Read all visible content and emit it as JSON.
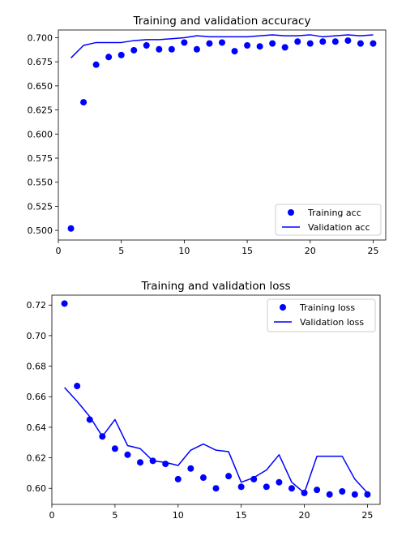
{
  "colors": {
    "marker": "#0000ff",
    "line": "#0000ff",
    "axes": "#000000",
    "legend_border": "#cccccc"
  },
  "chart_data": [
    {
      "type": "line",
      "title": "Training and validation accuracy",
      "xlabel": "",
      "ylabel": "",
      "xlim": [
        0,
        26
      ],
      "ylim": [
        0.49,
        0.708
      ],
      "xticks": [
        0,
        5,
        10,
        15,
        20,
        25
      ],
      "yticks": [
        0.5,
        0.525,
        0.55,
        0.575,
        0.6,
        0.625,
        0.65,
        0.675,
        0.7
      ],
      "ytick_labels": [
        "0.500",
        "0.525",
        "0.550",
        "0.575",
        "0.600",
        "0.625",
        "0.650",
        "0.675",
        "0.700"
      ],
      "grid": false,
      "legend_position": "lower-right",
      "x": [
        1,
        2,
        3,
        4,
        5,
        6,
        7,
        8,
        9,
        10,
        11,
        12,
        13,
        14,
        15,
        16,
        17,
        18,
        19,
        20,
        21,
        22,
        23,
        24,
        25
      ],
      "series": [
        {
          "name": "Training acc",
          "style": "markers",
          "values": [
            0.502,
            0.633,
            0.672,
            0.68,
            0.682,
            0.687,
            0.692,
            0.688,
            0.688,
            0.695,
            0.688,
            0.694,
            0.695,
            0.686,
            0.692,
            0.691,
            0.694,
            0.69,
            0.696,
            0.694,
            0.696,
            0.696,
            0.697,
            0.694,
            0.694
          ]
        },
        {
          "name": "Validation acc",
          "style": "line",
          "values": [
            0.679,
            0.692,
            0.695,
            0.695,
            0.695,
            0.697,
            0.698,
            0.698,
            0.699,
            0.7,
            0.702,
            0.701,
            0.701,
            0.701,
            0.701,
            0.702,
            0.703,
            0.702,
            0.702,
            0.703,
            0.701,
            0.702,
            0.703,
            0.702,
            0.703
          ]
        }
      ]
    },
    {
      "type": "line",
      "title": "Training and validation loss",
      "xlabel": "",
      "ylabel": "",
      "xlim": [
        0,
        26
      ],
      "ylim": [
        0.5895,
        0.7265
      ],
      "xticks": [
        0,
        5,
        10,
        15,
        20,
        25
      ],
      "yticks": [
        0.6,
        0.62,
        0.64,
        0.66,
        0.68,
        0.7,
        0.72
      ],
      "ytick_labels": [
        "0.60",
        "0.62",
        "0.64",
        "0.66",
        "0.68",
        "0.70",
        "0.72"
      ],
      "grid": false,
      "legend_position": "upper-right",
      "x": [
        1,
        2,
        3,
        4,
        5,
        6,
        7,
        8,
        9,
        10,
        11,
        12,
        13,
        14,
        15,
        16,
        17,
        18,
        19,
        20,
        21,
        22,
        23,
        24,
        25
      ],
      "series": [
        {
          "name": "Training loss",
          "style": "markers",
          "values": [
            0.721,
            0.667,
            0.645,
            0.634,
            0.626,
            0.622,
            0.617,
            0.618,
            0.616,
            0.606,
            0.613,
            0.607,
            0.6,
            0.608,
            0.601,
            0.606,
            0.601,
            0.604,
            0.6,
            0.597,
            0.599,
            0.596,
            0.598,
            0.596,
            0.596
          ]
        },
        {
          "name": "Validation loss",
          "style": "line",
          "values": [
            0.666,
            0.657,
            0.647,
            0.634,
            0.645,
            0.628,
            0.626,
            0.618,
            0.617,
            0.615,
            0.625,
            0.629,
            0.625,
            0.624,
            0.604,
            0.607,
            0.612,
            0.622,
            0.604,
            0.597,
            0.621,
            0.621,
            0.621,
            0.606,
            0.597
          ]
        }
      ]
    }
  ]
}
